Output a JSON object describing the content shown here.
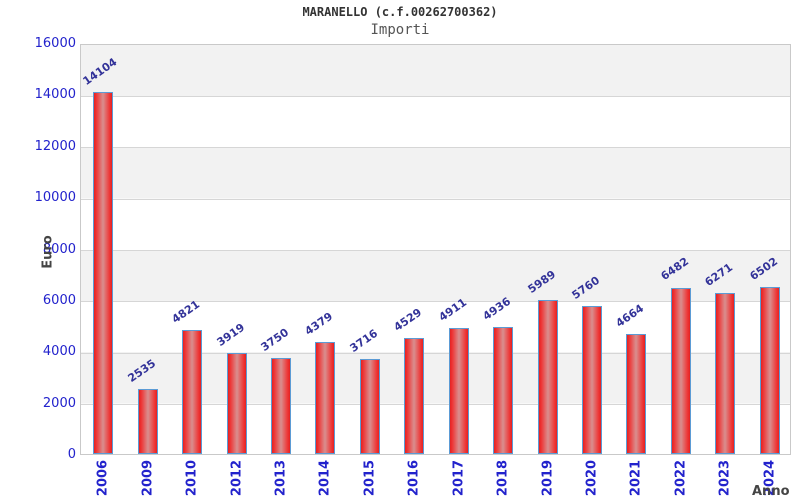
{
  "header": {
    "title": "MARANELLO (c.f.00262700362)",
    "subtitle": "Importi"
  },
  "chart_data": {
    "type": "bar",
    "title": "MARANELLO (c.f.00262700362)",
    "subtitle": "Importi",
    "xlabel": "Anno",
    "ylabel": "Euro",
    "categories": [
      "2006",
      "2009",
      "2010",
      "2012",
      "2013",
      "2014",
      "2015",
      "2016",
      "2017",
      "2018",
      "2019",
      "2020",
      "2021",
      "2022",
      "2023",
      "2024"
    ],
    "values": [
      14104,
      2535,
      4821,
      3919,
      3750,
      4379,
      3716,
      4529,
      4911,
      4936,
      5989,
      5760,
      4664,
      6482,
      6271,
      6502
    ],
    "ylim": [
      0,
      16000
    ],
    "ytick_step": 2000,
    "yticks": [
      "0",
      "2000",
      "4000",
      "6000",
      "8000",
      "10000",
      "12000",
      "14000",
      "16000"
    ],
    "grid": "horizontal alternating bands, gray top band",
    "legend_position": "none",
    "value_labels": "above bars, rotated",
    "colors": {
      "bar_fill_edge": "#e32222",
      "bar_fill_center": "#d98f8f",
      "bar_border": "#5b9bd5",
      "axis_tick_label": "#2222cc",
      "value_label": "#333399",
      "band_gray": "#f2f2f2",
      "band_white": "#ffffff",
      "title_color": "#333333",
      "subtitle_color": "#555555",
      "axis_title_color": "#444444"
    }
  }
}
